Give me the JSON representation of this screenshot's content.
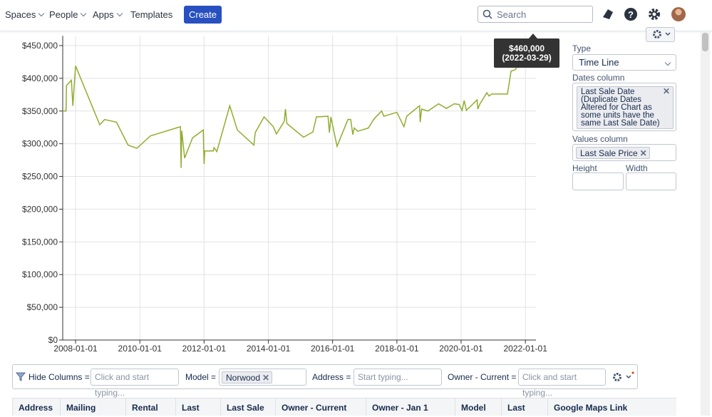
{
  "nav": {
    "spaces": "Spaces",
    "people": "People",
    "apps": "Apps",
    "templates": "Templates",
    "create": "Create",
    "search": "Search"
  },
  "chart_data": {
    "type": "line",
    "color": "#8fad2d",
    "xlim": [
      "2007-08-08",
      "2022-05-01"
    ],
    "xticks": [
      "2008-01-01",
      "2010-01-01",
      "2012-01-01",
      "2014-01-01",
      "2016-01-01",
      "2018-01-01",
      "2020-01-01",
      "2022-01-01"
    ],
    "ylim": [
      0,
      465000
    ],
    "yticks": [
      {
        "value": 0,
        "label": "$0"
      },
      {
        "value": 50000,
        "label": "$50,000"
      },
      {
        "value": 100000,
        "label": "$100,000"
      },
      {
        "value": 150000,
        "label": "$150,000"
      },
      {
        "value": 200000,
        "label": "$200,000"
      },
      {
        "value": 250000,
        "label": "$250,000"
      },
      {
        "value": 300000,
        "label": "$300,000"
      },
      {
        "value": 350000,
        "label": "$350,000"
      },
      {
        "value": 400000,
        "label": "$400,000"
      },
      {
        "value": 450000,
        "label": "$450,000"
      }
    ],
    "grid": true,
    "x": [
      "2007-08-08",
      "2007-09-15",
      "2007-09-20",
      "2007-11-15",
      "2007-12-01",
      "2008-01-01",
      "2008-10-02",
      "2008-11-26",
      "2009-04-10",
      "2009-08-20",
      "2009-11-28",
      "2010-05-01",
      "2011-04-07",
      "2011-04-15",
      "2011-04-22",
      "2011-05-25",
      "2011-08-23",
      "2011-12-23",
      "2012-01-01",
      "2012-01-09",
      "2012-04-15",
      "2012-04-23",
      "2012-05-25",
      "2012-10-19",
      "2013-01-13",
      "2013-07-20",
      "2013-08-05",
      "2013-11-13",
      "2014-02-26",
      "2014-04-03",
      "2014-06-30",
      "2014-07-14",
      "2014-07-30",
      "2015-02-04",
      "2015-05-22",
      "2015-07-01",
      "2015-11-10",
      "2015-11-26",
      "2015-12-12",
      "2016-02-21",
      "2016-06-23",
      "2016-07-25",
      "2016-08-18",
      "2016-09-03",
      "2016-10-13",
      "2017-02-10",
      "2017-04-07",
      "2017-04-30",
      "2017-07-12",
      "2017-08-05",
      "2018-01-01",
      "2018-03-22",
      "2018-04-23",
      "2018-09-15",
      "2018-09-23",
      "2018-10-09",
      "2018-12-20",
      "2019-04-20",
      "2019-07-18",
      "2019-10-15",
      "2019-12-10",
      "2020-01-12",
      "2020-02-05",
      "2020-03-01",
      "2020-07-01",
      "2020-07-09",
      "2020-08-02",
      "2020-10-20",
      "2020-11-13",
      "2020-12-15",
      "2021-06-11",
      "2021-07-22",
      "2021-09-08",
      "2022-03-29"
    ],
    "values": [
      350000,
      350000,
      389000,
      397000,
      358000,
      419000,
      329000,
      337000,
      333000,
      298000,
      293000,
      312000,
      326000,
      263000,
      320000,
      278000,
      309000,
      321000,
      269000,
      289000,
      289000,
      294000,
      288000,
      358000,
      321000,
      298000,
      317000,
      341000,
      326000,
      315000,
      334000,
      353000,
      331000,
      310000,
      318000,
      341000,
      342000,
      317000,
      341000,
      296000,
      337000,
      337000,
      314000,
      324000,
      319000,
      324000,
      336000,
      340000,
      350000,
      342000,
      348000,
      326000,
      342000,
      358000,
      333000,
      353000,
      350000,
      361000,
      354000,
      361000,
      360000,
      351000,
      366000,
      351000,
      367000,
      353000,
      361000,
      378000,
      373000,
      376000,
      376000,
      411000,
      413000,
      460000
    ],
    "tooltip": {
      "value": "$460,000",
      "date": "(2022-03-29)"
    }
  },
  "panel": {
    "type_label": "Type",
    "type_value": "Time Line",
    "dates_label": "Dates column",
    "dates_value": "Last Sale Date (Duplicate Dates Altered for Chart as some units have the same Last Sale Date)",
    "values_label": "Values column",
    "values_value": "Last Sale Price",
    "height_label": "Height",
    "width_label": "Width"
  },
  "filters": {
    "hide_columns": "Hide Columns =",
    "hide_placeholder": "Click and start typing...",
    "model": "Model =",
    "model_value": "Norwood",
    "address": "Address =",
    "address_placeholder": "Start typing...",
    "owner": "Owner - Current =",
    "owner_placeholder": "Click and start typing..."
  },
  "table": {
    "headers": [
      "Address",
      "Mailing",
      "Rental",
      "Last",
      "Last Sale",
      "Owner - Current",
      "Owner - Jan 1",
      "Model",
      "Last",
      "Google Maps Link"
    ]
  }
}
